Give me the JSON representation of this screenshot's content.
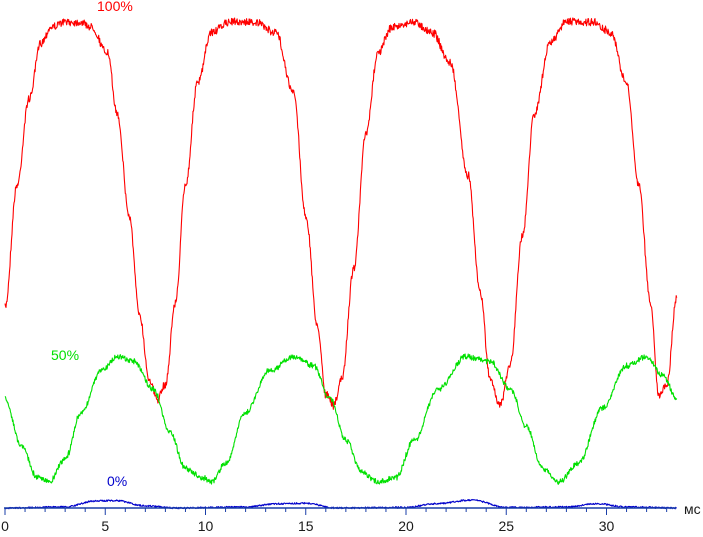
{
  "chart_data": {
    "type": "line",
    "xlabel": "",
    "ylabel": "",
    "x_unit": "мс",
    "xlim": [
      0,
      33.5
    ],
    "ylim": [
      0,
      100
    ],
    "x_ticks": [
      "0",
      "5",
      "10",
      "15",
      "20",
      "25",
      "30"
    ],
    "grid": false,
    "legend": "inline labels",
    "period_ms": 8.4,
    "series": [
      {
        "name": "100%",
        "color": "#ff0000",
        "low": 24,
        "high": 100,
        "x": [
          0,
          0.6,
          1.2,
          1.8,
          2.3,
          3.0,
          3.8,
          4.3,
          5.1,
          5.6,
          6.2,
          6.7,
          7.2,
          7.6,
          8.0,
          8.5,
          9.0,
          9.6,
          10.3,
          11.2,
          12.4,
          13.5,
          14.4,
          15.0,
          15.6,
          16.0,
          16.4,
          16.8,
          17.4,
          18.0,
          18.6,
          19.3,
          20.4,
          21.3,
          22.2,
          23.1,
          23.7,
          24.2,
          24.7,
          25.2,
          25.8,
          26.4,
          27.2,
          28.0,
          29.3,
          30.2,
          31.0,
          31.6,
          32.2,
          32.6,
          33.0,
          33.5
        ],
        "y": [
          44,
          68,
          85,
          96,
          99,
          100,
          100,
          99,
          94,
          82,
          62,
          43,
          30,
          26,
          29,
          45,
          68,
          88,
          98,
          100,
          100,
          98,
          86,
          62,
          40,
          27,
          25,
          30,
          52,
          78,
          94,
          99,
          100,
          98,
          92,
          70,
          47,
          30,
          25,
          33,
          58,
          82,
          96,
          100,
          100,
          98,
          88,
          68,
          45,
          27,
          29,
          46
        ]
      },
      {
        "name": "50%",
        "color": "#00e000",
        "low": 10,
        "high": 38,
        "x": [
          0,
          0.8,
          1.6,
          2.2,
          3.0,
          3.8,
          4.8,
          5.6,
          6.4,
          7.4,
          8.2,
          9.0,
          9.8,
          10.3,
          11.0,
          12.0,
          13.2,
          14.4,
          15.4,
          16.2,
          17.0,
          17.8,
          18.6,
          19.5,
          20.4,
          21.6,
          23.0,
          24.2,
          25.2,
          26.0,
          26.8,
          27.6,
          28.6,
          29.8,
          31.0,
          32.0,
          32.8,
          33.5
        ],
        "y": [
          28,
          18,
          11,
          10,
          15,
          25,
          34,
          37,
          36,
          30,
          21,
          13,
          11,
          10,
          14,
          25,
          34,
          37,
          35,
          28,
          19,
          12,
          10,
          11,
          19,
          30,
          37,
          36,
          30,
          22,
          13,
          10,
          14,
          26,
          35,
          37,
          33,
          28
        ]
      },
      {
        "name": "0%",
        "color": "#0000cc",
        "low": 0,
        "high": 1.5,
        "x": [
          0,
          3.0,
          4.5,
          5.5,
          7.0,
          8.5,
          12.0,
          13.6,
          15.0,
          16.5,
          20.0,
          21.5,
          23.3,
          25.0,
          28.0,
          29.5,
          31.0,
          33.5
        ],
        "y": [
          0,
          0.2,
          1.3,
          1.4,
          0.4,
          0,
          0.2,
          0.8,
          0.9,
          0,
          0.1,
          0.8,
          1.5,
          0.1,
          0.2,
          0.8,
          0.2,
          0
        ]
      }
    ]
  }
}
